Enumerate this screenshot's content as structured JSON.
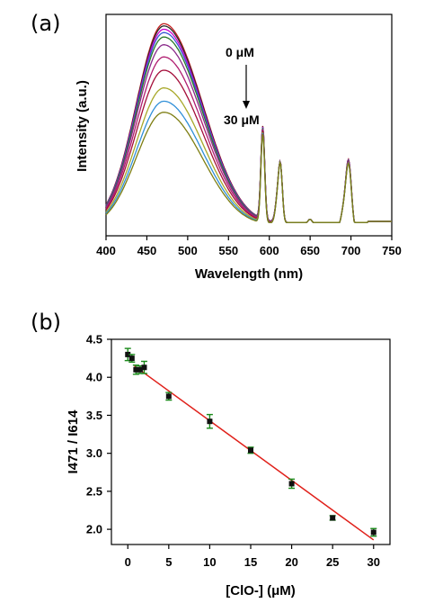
{
  "chart_data": [
    {
      "panel_label": "(a)",
      "type": "line",
      "xlabel": "Wavelength (nm)",
      "ylabel": "Intensity (a.u.)",
      "xlim": [
        400,
        750
      ],
      "xticks": [
        400,
        450,
        500,
        550,
        600,
        650,
        700,
        750
      ],
      "yticks_shown": false,
      "grid": false,
      "annotations": {
        "start": "0 μM",
        "end": "30 μM",
        "arrow": "down"
      },
      "peaks": {
        "broad_peak_nm": 471,
        "sharp_peaks_nm": [
          592,
          614,
          650,
          697
        ]
      },
      "series": [
        {
          "color": "#c41e1e",
          "broad_height": 0.93
        },
        {
          "color": "#2a2a2a",
          "broad_height": 0.92
        },
        {
          "color": "#cc00cc",
          "broad_height": 0.905
        },
        {
          "color": "#3a58d6",
          "broad_height": 0.89
        },
        {
          "color": "#2a7a2a",
          "broad_height": 0.87
        },
        {
          "color": "#8a2a8a",
          "broad_height": 0.835
        },
        {
          "color": "#b01c70",
          "broad_height": 0.78
        },
        {
          "color": "#a40e3a",
          "broad_height": 0.72
        },
        {
          "color": "#a8a82a",
          "broad_height": 0.64
        },
        {
          "color": "#2f8fd8",
          "broad_height": 0.58
        },
        {
          "color": "#7e7e12",
          "broad_height": 0.53
        }
      ]
    },
    {
      "panel_label": "(b)",
      "type": "scatter",
      "xlabel": "[ClO-] (μM)",
      "ylabel": "I471 / I614",
      "xlim": [
        -2,
        32
      ],
      "ylim": [
        1.8,
        4.5
      ],
      "xticks": [
        0,
        5,
        10,
        15,
        20,
        25,
        30
      ],
      "yticks": [
        2.0,
        2.5,
        3.0,
        3.5,
        4.0,
        4.5
      ],
      "grid": false,
      "marker_color": "#111111",
      "errorbar_color": "#1a8a1a",
      "fit_line_color": "#e0201a",
      "x": [
        0,
        0.5,
        1,
        1.5,
        2,
        5,
        10,
        15,
        20,
        25,
        30
      ],
      "y": [
        4.3,
        4.25,
        4.1,
        4.1,
        4.13,
        3.75,
        3.42,
        3.04,
        2.6,
        2.15,
        1.96
      ],
      "err": [
        0.08,
        0.05,
        0.06,
        0.05,
        0.08,
        0.05,
        0.09,
        0.04,
        0.06,
        0.03,
        0.05
      ],
      "fit": {
        "x": [
          0.8,
          30
        ],
        "y": [
          4.15,
          1.86
        ]
      }
    }
  ]
}
